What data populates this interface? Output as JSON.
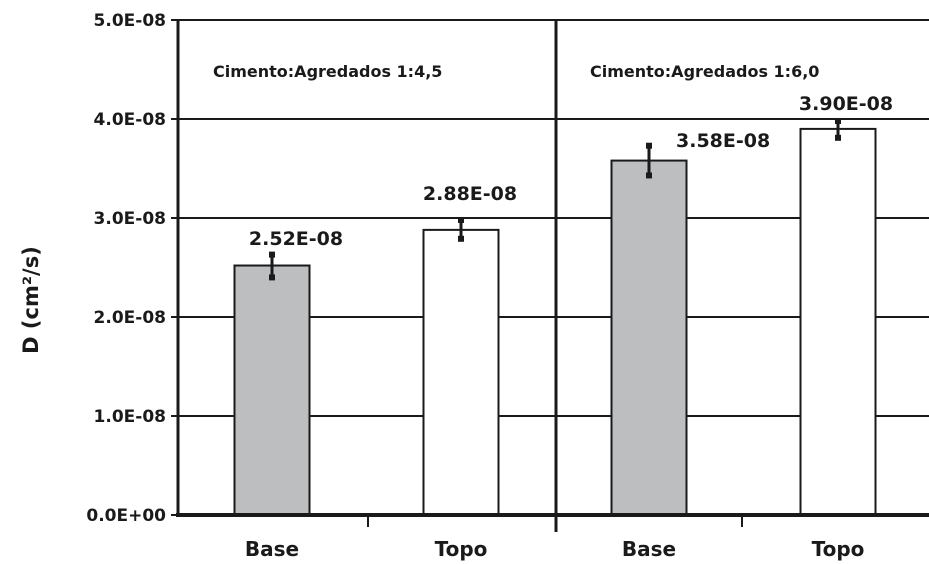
{
  "chart_data": {
    "type": "bar",
    "ylabel": "D (cm²/s)",
    "ylim": [
      0,
      5e-08
    ],
    "yticks": [
      {
        "value": 0,
        "label": "0.0E+00"
      },
      {
        "value": 1e-08,
        "label": "1.0E-08"
      },
      {
        "value": 2e-08,
        "label": "2.0E-08"
      },
      {
        "value": 3e-08,
        "label": "3.0E-08"
      },
      {
        "value": 4e-08,
        "label": "4.0E-08"
      },
      {
        "value": 5e-08,
        "label": "5.0E-08"
      }
    ],
    "grid": true,
    "legend": "none",
    "panels": [
      {
        "label": "Cimento:Agredados  1:4,5",
        "bars": [
          {
            "category": "Base",
            "value": 2.52e-08,
            "label": "2.52E-08",
            "err_low": 2.4e-08,
            "err_high": 2.63e-08,
            "fill": "#bcbec0"
          },
          {
            "category": "Topo",
            "value": 2.88e-08,
            "label": "2.88E-08",
            "err_low": 2.79e-08,
            "err_high": 2.98e-08,
            "fill": "#ffffff"
          }
        ]
      },
      {
        "label": "Cimento:Agredados  1:6,0",
        "bars": [
          {
            "category": "Base",
            "value": 3.58e-08,
            "label": "3.58E-08",
            "err_low": 3.43e-08,
            "err_high": 3.73e-08,
            "fill": "#bcbec0"
          },
          {
            "category": "Topo",
            "value": 3.9e-08,
            "label": "3.90E-08",
            "err_low": 3.81e-08,
            "err_high": 3.98e-08,
            "fill": "#ffffff"
          }
        ]
      }
    ]
  }
}
